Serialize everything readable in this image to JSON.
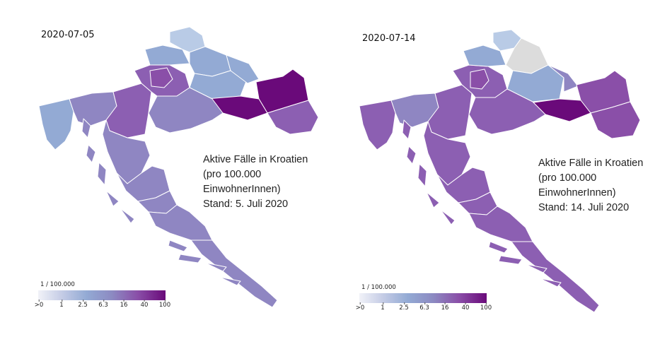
{
  "left": {
    "date": "2020-07-05",
    "caption": [
      "Aktive Fälle in Kroatien",
      "(pro 100.000",
      "EinwohnerInnen)",
      "Stand: 5. Juli 2020"
    ],
    "legend_unit": "1 / 100.000",
    "legend_ticks": [
      ">0",
      "1",
      "2.5",
      "6.3",
      "16",
      "40",
      "100"
    ]
  },
  "right": {
    "date": "2020-07-14",
    "caption": [
      "Aktive Fälle in Kroatien",
      "(pro 100.000",
      "EinwohnerInnen)",
      "Stand: 14. Juli 2020"
    ],
    "legend_unit": "1 / 100.000",
    "legend_ticks": [
      ">0",
      "1",
      "2.5",
      "6.3",
      "16",
      "40",
      "100"
    ]
  },
  "colors": {
    "very_light": "#b9cbe6",
    "light_blue": "#93aad4",
    "lavender": "#8f86c2",
    "purple": "#8c5fb2",
    "mid_purple": "#8a4fa8",
    "dark_purple": "#6a0a7a",
    "no_data": "#dcdcdc"
  }
}
